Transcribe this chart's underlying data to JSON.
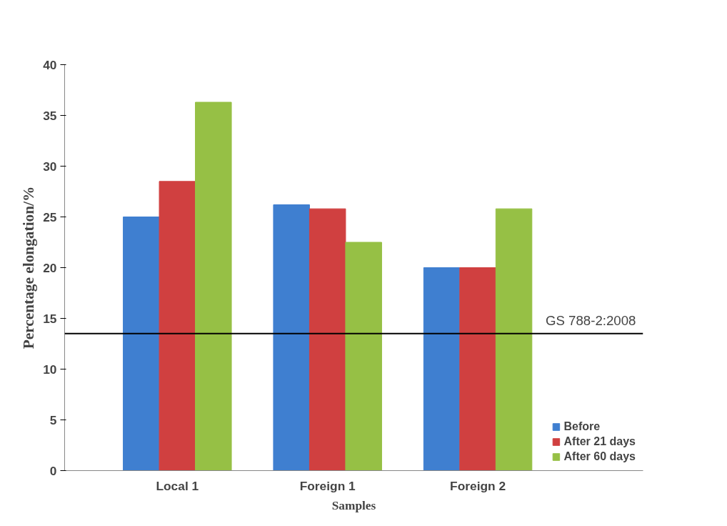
{
  "chart_data": {
    "type": "bar",
    "xlabel": "Samples",
    "ylabel": "Percentage elongation/%",
    "categories": [
      "Local 1",
      "Foreign 1",
      "Foreign 2"
    ],
    "series": [
      {
        "name": "Before",
        "color": "#3f7fd0",
        "values": [
          25.0,
          26.2,
          20.0
        ]
      },
      {
        "name": "After 21 days",
        "color": "#d04040",
        "values": [
          28.5,
          25.8,
          20.0
        ]
      },
      {
        "name": "After 60 days",
        "color": "#96c045",
        "values": [
          36.3,
          22.5,
          25.8
        ]
      }
    ],
    "ylim": [
      0,
      40
    ],
    "yticks": [
      0,
      5,
      10,
      15,
      20,
      25,
      30,
      35,
      40
    ],
    "ref_lines": [
      {
        "axis": "y",
        "value": 13.5,
        "color": "#000000"
      }
    ],
    "annotations": [
      "GS 788-2:2008"
    ],
    "grid": false,
    "legend": "bottom right"
  }
}
